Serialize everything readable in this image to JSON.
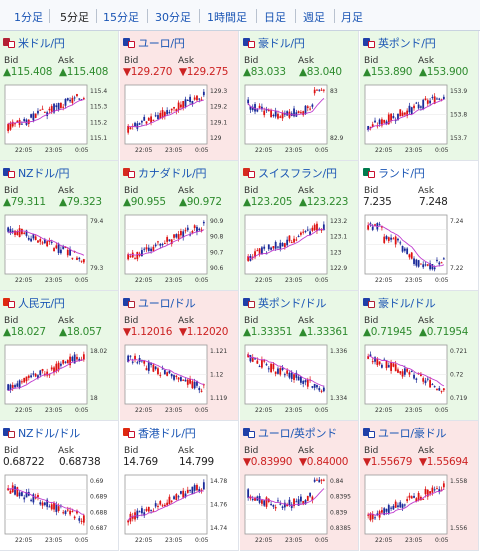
{
  "tabs": [
    {
      "label": "1分足",
      "active": false
    },
    {
      "label": "5分足",
      "active": true
    },
    {
      "label": "15分足",
      "active": false
    },
    {
      "label": "30分足",
      "active": false
    },
    {
      "label": "1時間足",
      "active": false
    },
    {
      "label": "日足",
      "active": false
    },
    {
      "label": "週足",
      "active": false
    },
    {
      "label": "月足",
      "active": false
    }
  ],
  "labels": {
    "bid": "Bid",
    "ask": "Ask"
  },
  "colors": {
    "up_bg": "#e9f8e6",
    "down_bg": "#fbe6e6",
    "up_text": "#2e8b2e",
    "down_text": "#cc2222",
    "bull_candle": "#dd1111",
    "bear_candle": "#1a2a99",
    "ma_line": "#c03ccf"
  },
  "x_ticks": [
    "22:05",
    "23:05",
    "0:05"
  ],
  "cards": [
    {
      "pair": "米ドル/円",
      "flag": [
        "#b22234",
        "#c8102e"
      ],
      "dir": "up",
      "bid": "115.408",
      "ask": "115.408",
      "y_ticks": [
        "115.4",
        "115.3",
        "115.2",
        "115.1"
      ],
      "trend": "up"
    },
    {
      "pair": "ユーロ/円",
      "flag": [
        "#1f3fa8",
        "#c8102e"
      ],
      "dir": "down",
      "bid": "129.270",
      "ask": "129.275",
      "y_ticks": [
        "129.3",
        "129.2",
        "129.1",
        "129"
      ],
      "trend": "up"
    },
    {
      "pair": "豪ドル/円",
      "flag": [
        "#1f3fa8",
        "#c8102e"
      ],
      "dir": "up",
      "bid": "83.033",
      "ask": "83.040",
      "y_ticks": [
        "83",
        "82.9"
      ],
      "trend": "vshape"
    },
    {
      "pair": "英ポンド/円",
      "flag": [
        "#1f3fa8",
        "#c8102e"
      ],
      "dir": "up",
      "bid": "153.890",
      "ask": "153.900",
      "y_ticks": [
        "153.9",
        "153.8",
        "153.7"
      ],
      "trend": "up"
    },
    {
      "pair": "NZドル/円",
      "flag": [
        "#1f3fa8",
        "#c8102e"
      ],
      "dir": "up",
      "bid": "79.311",
      "ask": "79.323",
      "y_ticks": [
        "79.4",
        "79.3"
      ],
      "trend": "down"
    },
    {
      "pair": "カナダドル/円",
      "flag": [
        "#d52b1e",
        "#c8102e"
      ],
      "dir": "up",
      "bid": "90.955",
      "ask": "90.972",
      "y_ticks": [
        "90.9",
        "90.8",
        "90.7",
        "90.6"
      ],
      "trend": "up"
    },
    {
      "pair": "スイスフラン/円",
      "flag": [
        "#d52b1e",
        "#c8102e"
      ],
      "dir": "up",
      "bid": "123.205",
      "ask": "123.223",
      "y_ticks": [
        "123.2",
        "123.1",
        "123",
        "122.9"
      ],
      "trend": "up"
    },
    {
      "pair": "ランド/円",
      "flag": [
        "#007a4d",
        "#c8102e"
      ],
      "dir": "flat",
      "bid": "7.235",
      "ask": "7.248",
      "y_ticks": [
        "7.24",
        "7.22"
      ],
      "trend": "drop"
    },
    {
      "pair": "人民元/円",
      "flag": [
        "#de2910",
        "#c8102e"
      ],
      "dir": "up",
      "bid": "18.027",
      "ask": "18.057",
      "y_ticks": [
        "18.02",
        "18"
      ],
      "trend": "up"
    },
    {
      "pair": "ユーロ/ドル",
      "flag": [
        "#1f3fa8",
        "#b22234"
      ],
      "dir": "down",
      "bid": "1.12016",
      "ask": "1.12020",
      "y_ticks": [
        "1.121",
        "1.12",
        "1.119"
      ],
      "trend": "down"
    },
    {
      "pair": "英ポンド/ドル",
      "flag": [
        "#1f3fa8",
        "#b22234"
      ],
      "dir": "up",
      "bid": "1.33351",
      "ask": "1.33361",
      "y_ticks": [
        "1.336",
        "1.334"
      ],
      "trend": "down"
    },
    {
      "pair": "豪ドル/ドル",
      "flag": [
        "#1f3fa8",
        "#b22234"
      ],
      "dir": "up",
      "bid": "0.71945",
      "ask": "0.71954",
      "y_ticks": [
        "0.721",
        "0.72",
        "0.719"
      ],
      "trend": "down"
    },
    {
      "pair": "NZドル/ドル",
      "flag": [
        "#1f3fa8",
        "#b22234"
      ],
      "dir": "flat",
      "bid": "0.68722",
      "ask": "0.68738",
      "y_ticks": [
        "0.69",
        "0.689",
        "0.688",
        "0.687"
      ],
      "trend": "down"
    },
    {
      "pair": "香港ドル/円",
      "flag": [
        "#de2910",
        "#c8102e"
      ],
      "dir": "flat",
      "bid": "14.769",
      "ask": "14.799",
      "y_ticks": [
        "14.78",
        "14.76",
        "14.74"
      ],
      "trend": "up"
    },
    {
      "pair": "ユーロ/英ポンド",
      "flag": [
        "#1f3fa8",
        "#1f3fa8"
      ],
      "dir": "down",
      "bid": "0.83990",
      "ask": "0.84000",
      "y_ticks": [
        "0.84",
        "0.8395",
        "0.839",
        "0.8385"
      ],
      "trend": "vshape"
    },
    {
      "pair": "ユーロ/豪ドル",
      "flag": [
        "#1f3fa8",
        "#1f3fa8"
      ],
      "dir": "down",
      "bid": "1.55679",
      "ask": "1.55694",
      "y_ticks": [
        "1.558",
        "1.556"
      ],
      "trend": "up"
    }
  ]
}
